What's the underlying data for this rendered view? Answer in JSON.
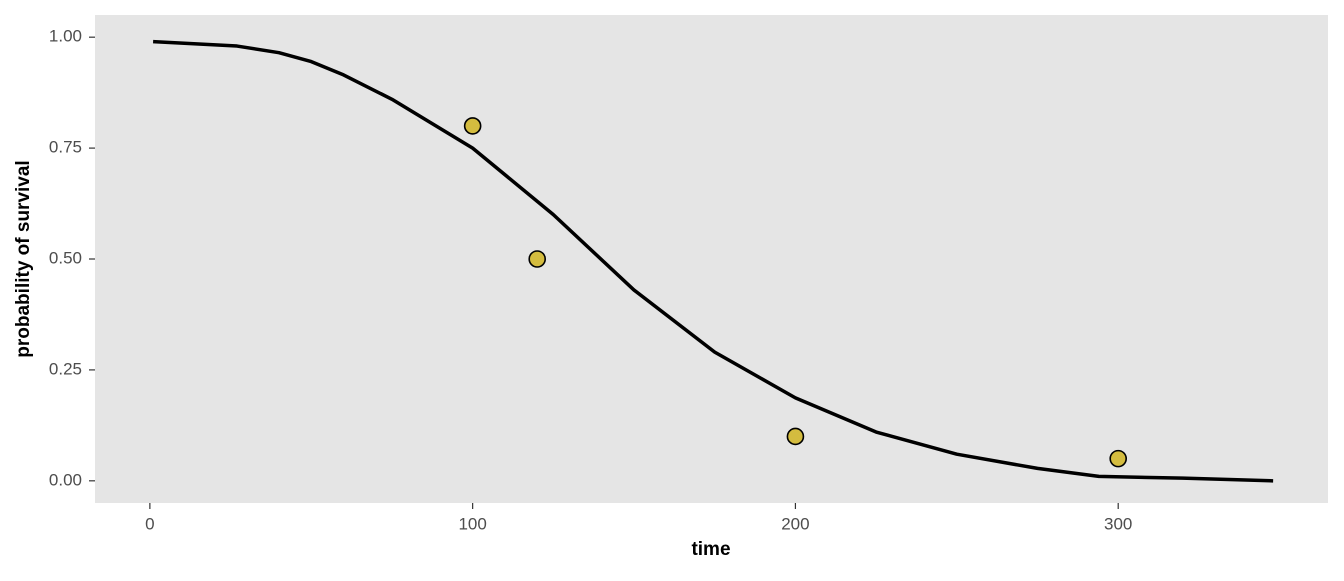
{
  "chart_data": {
    "type": "line",
    "x_label": "time",
    "y_label": "probability of survival",
    "xlim": [
      -17,
      365
    ],
    "ylim": [
      -0.05,
      1.05
    ],
    "xticks": [
      0,
      100,
      200,
      300
    ],
    "yticks": [
      {
        "value": 0,
        "label": "0.00"
      },
      {
        "value": 0.25,
        "label": "0.25"
      },
      {
        "value": 0.5,
        "label": "0.50"
      },
      {
        "value": 0.75,
        "label": "0.75"
      },
      {
        "value": 1,
        "label": "1.00"
      }
    ],
    "grid": false,
    "layers": [
      {
        "type": "line",
        "color": "#000000",
        "x": [
          1,
          27,
          40,
          50,
          60,
          75,
          100,
          125,
          150,
          175,
          200,
          225,
          250,
          275,
          294,
          320,
          348
        ],
        "values": [
          0.99,
          0.98,
          0.965,
          0.945,
          0.915,
          0.86,
          0.75,
          0.6,
          0.43,
          0.29,
          0.187,
          0.11,
          0.06,
          0.028,
          0.01,
          0.006,
          0.0
        ]
      },
      {
        "type": "scatter",
        "color": "#d4bc3f",
        "x": [
          100,
          120,
          200,
          300
        ],
        "values": [
          0.8,
          0.5,
          0.1,
          0.05
        ]
      }
    ]
  }
}
